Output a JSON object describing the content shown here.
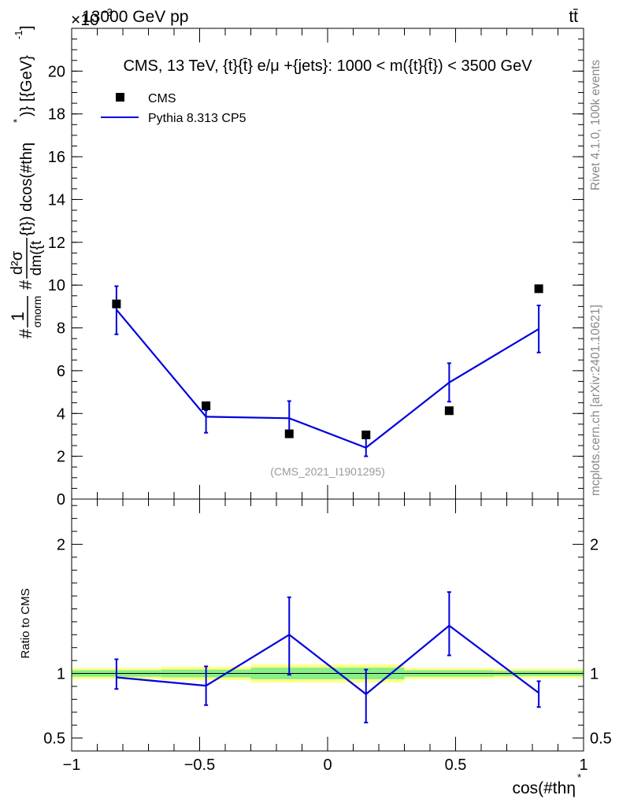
{
  "header": {
    "energy_label": "13000 GeV pp",
    "process_label": "tt̄",
    "scale_label": "×10",
    "scale_exponent": "−3"
  },
  "side_labels": {
    "rivet": "Rivet 4.1.0,  100k events",
    "mcplots": "mcplots.cern.ch [arXiv:2401.10621]"
  },
  "chart_data": [
    {
      "type": "line",
      "panel": "main",
      "title": "CMS, 13 TeV, {t}{t̄} e/μ +{jets}: 1000 < m({t}{t̄}) < 3500 GeV",
      "ylabel_parts": [
        "#",
        "1",
        "σnorm",
        "#",
        "d²σ",
        "dm({t",
        "{t}) dcos(#thη",
        "*",
        ")} [{GeV}",
        "-1",
        "]"
      ],
      "analysis_tag": "(CMS_2021_I1901295)",
      "xlim": [
        -1,
        1
      ],
      "ylim": [
        0,
        0.022
      ],
      "y_ticks": [
        0,
        0.002,
        0.004,
        0.006,
        0.008,
        0.01,
        0.012,
        0.014,
        0.016,
        0.018,
        0.02
      ],
      "y_tick_labels": [
        "0",
        "2",
        "4",
        "6",
        "8",
        "10",
        "12",
        "14",
        "16",
        "18",
        "20"
      ],
      "legend": [
        {
          "name": "CMS",
          "marker": "square",
          "color": "#000000"
        },
        {
          "name": "Pythia 8.313 CP5",
          "marker": "line",
          "color": "#0000dd"
        }
      ],
      "series": [
        {
          "name": "CMS",
          "x": [
            -0.825,
            -0.475,
            -0.15,
            0.15,
            0.475,
            0.825
          ],
          "values": [
            0.00912,
            0.00436,
            0.00305,
            0.003,
            0.00413,
            0.00983
          ]
        },
        {
          "name": "Pythia 8.313 CP5",
          "x": [
            -0.825,
            -0.475,
            -0.15,
            0.15,
            0.475,
            0.825
          ],
          "values": [
            0.00885,
            0.00385,
            0.00378,
            0.0024,
            0.00545,
            0.00795
          ],
          "err_low": [
            0.00115,
            0.00075,
            0.0008,
            0.0004,
            0.0009,
            0.0011
          ],
          "err_high": [
            0.0011,
            0.0003,
            0.0008,
            0.00065,
            0.0009,
            0.0011
          ]
        }
      ]
    },
    {
      "type": "line",
      "panel": "ratio",
      "ylabel": "Ratio to CMS",
      "xlabel": "cos(#thη",
      "xlabel_sup": "*",
      "xlim": [
        -1,
        1
      ],
      "ylim": [
        0.4,
        2.35
      ],
      "y_major_ticks": [
        0.5,
        1,
        2
      ],
      "y_major_labels": [
        "0.5",
        "1",
        "2"
      ],
      "y_minor_ticks": [
        0.6,
        0.7,
        0.8,
        0.9,
        1.1,
        1.2,
        1.3,
        1.4,
        1.5,
        1.6,
        1.7,
        1.8,
        1.9,
        2.1,
        2.2,
        2.3
      ],
      "x_major_ticks": [
        -1,
        -0.5,
        0,
        0.5,
        1
      ],
      "x_tick_labels": [
        "−1",
        "−0.5",
        "0",
        "0.5",
        "1"
      ],
      "x_minor_step": 0.1,
      "band_colors": {
        "outer": "#ffff88",
        "inner": "#88ee88"
      },
      "bands": [
        {
          "x0": -1.0,
          "x1": -0.65,
          "outer": [
            0.957,
            1.043
          ],
          "inner": [
            0.975,
            1.025
          ]
        },
        {
          "x0": -0.65,
          "x1": -0.3,
          "outer": [
            0.948,
            1.052
          ],
          "inner": [
            0.97,
            1.03
          ]
        },
        {
          "x0": -0.3,
          "x1": 0.3,
          "outer": [
            0.93,
            1.07
          ],
          "inner": [
            0.955,
            1.045
          ]
        },
        {
          "x0": 0.3,
          "x1": 0.65,
          "outer": [
            0.957,
            1.043
          ],
          "inner": [
            0.975,
            1.025
          ]
        },
        {
          "x0": 0.65,
          "x1": 1.0,
          "outer": [
            0.963,
            1.037
          ],
          "inner": [
            0.98,
            1.02
          ]
        }
      ],
      "series": [
        {
          "name": "Pythia 8.313 CP5 / CMS",
          "x": [
            -0.825,
            -0.475,
            -0.15,
            0.15,
            0.475,
            0.825
          ],
          "values": [
            0.97,
            0.905,
            1.3,
            0.84,
            1.37,
            0.85
          ],
          "err_low": [
            0.09,
            0.15,
            0.31,
            0.22,
            0.23,
            0.11
          ],
          "err_high": [
            0.14,
            0.15,
            0.29,
            0.19,
            0.26,
            0.09
          ]
        }
      ]
    }
  ]
}
